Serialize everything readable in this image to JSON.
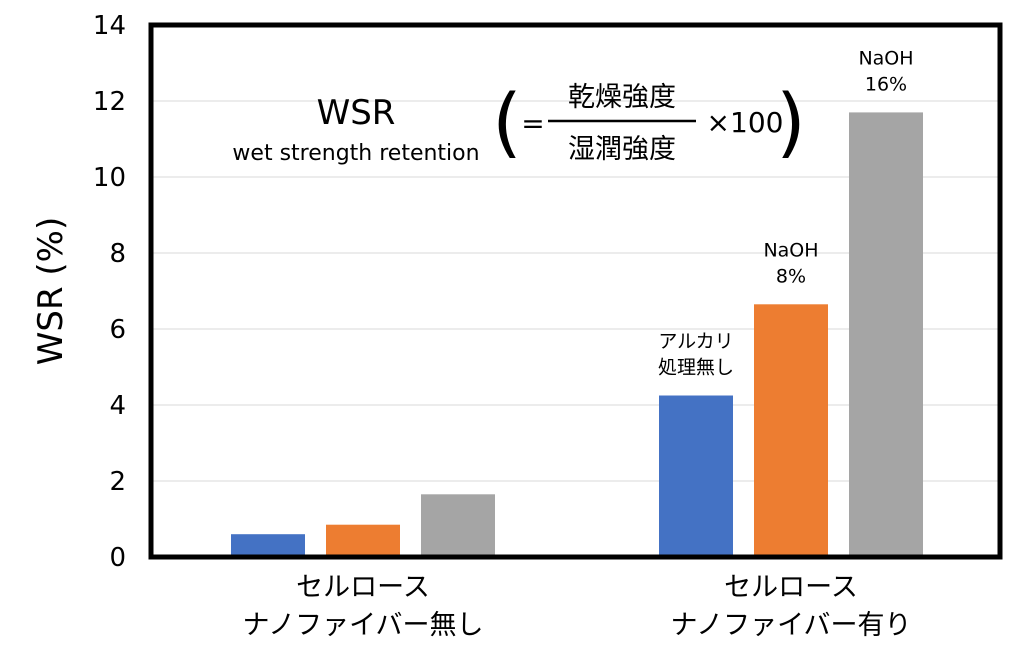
{
  "chart_data": {
    "type": "bar",
    "categories": [
      [
        "セルロース",
        "ナノファイバー無し"
      ],
      [
        "セルロース",
        "ナノファイバー有り"
      ]
    ],
    "series": [
      {
        "color": "#4472c4",
        "values": [
          0.6,
          4.25
        ]
      },
      {
        "color": "#ed7d31",
        "values": [
          0.85,
          6.65
        ]
      },
      {
        "color": "#a5a5a5",
        "values": [
          1.65,
          11.7
        ]
      }
    ],
    "ylabel": "WSR (%)",
    "ylim": [
      0,
      14
    ],
    "yticks": [
      0,
      2,
      4,
      6,
      8,
      10,
      12,
      14
    ],
    "grid": true,
    "annotations": [
      {
        "category": 1,
        "series": 0,
        "lines": [
          "アルカリ",
          "処理無し"
        ]
      },
      {
        "category": 1,
        "series": 1,
        "lines": [
          "NaOH",
          "8%"
        ]
      },
      {
        "category": 1,
        "series": 2,
        "lines": [
          "NaOH",
          "16%"
        ]
      }
    ],
    "formula": {
      "title": "WSR",
      "subtitle": "wet strength retention",
      "open_paren": "(",
      "close_paren": ")",
      "equals": "=",
      "numerator": "乾燥強度",
      "denominator": "湿潤強度",
      "multiplier": "×100"
    }
  }
}
